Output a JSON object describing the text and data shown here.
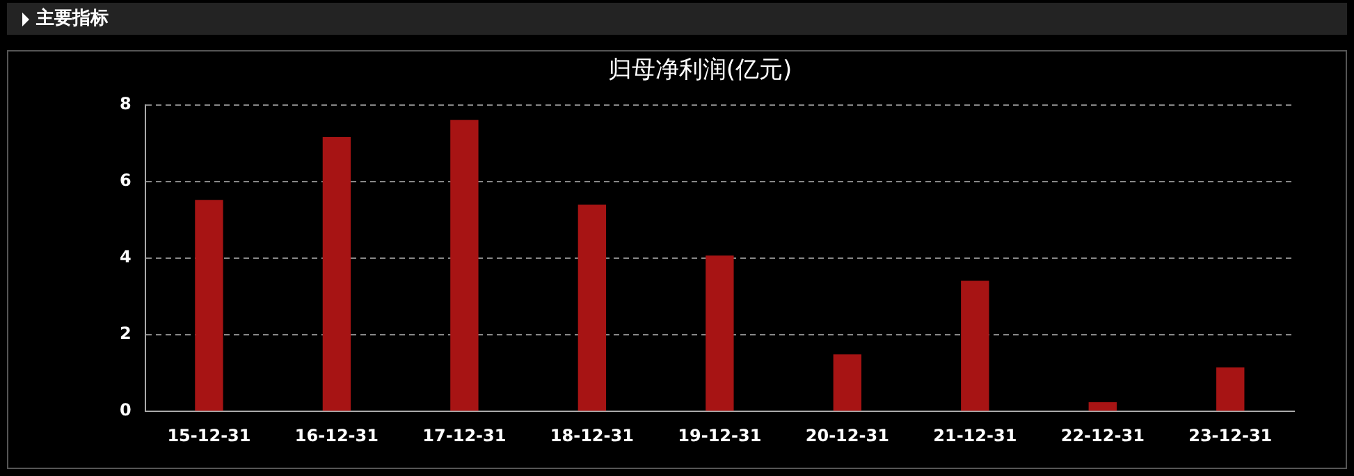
{
  "chart_data": {
    "type": "bar",
    "title": "归母净利润(亿元)",
    "annotations": [
      "主要指标"
    ],
    "categories": [
      "15-12-31",
      "16-12-31",
      "17-12-31",
      "18-12-31",
      "19-12-31",
      "20-12-31",
      "21-12-31",
      "22-12-31",
      "23-12-31"
    ],
    "values": [
      5.52,
      7.16,
      7.61,
      5.4,
      4.07,
      1.49,
      3.41,
      0.24,
      1.15
    ],
    "color": "#a71414",
    "ylim": [
      0,
      8
    ],
    "yticks": [
      0,
      2,
      4,
      6,
      8
    ],
    "grid": "y",
    "legend": false
  }
}
